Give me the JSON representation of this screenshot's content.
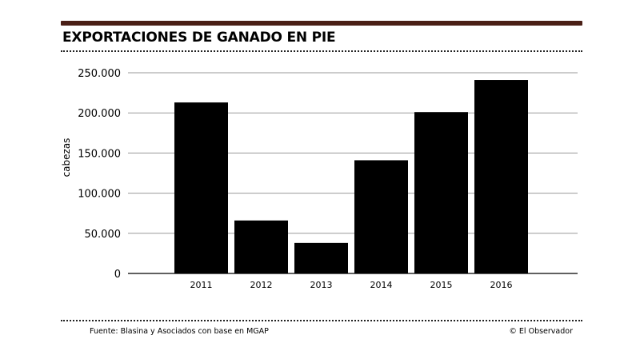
{
  "header": {
    "title": "EXPORTACIONES DE GANADO EN PIE"
  },
  "footer": {
    "source": "Fuente: Blasina y Asociados con base en MGAP",
    "credit": "© El Observador"
  },
  "colors": {
    "top_rule": "#4a1f16",
    "bar": "#000000",
    "grid": "#9a9a9a"
  },
  "chart_data": {
    "type": "bar",
    "title": "EXPORTACIONES DE GANADO EN PIE",
    "xlabel": "",
    "ylabel": "cabezas",
    "categories": [
      "2011",
      "2012",
      "2013",
      "2014",
      "2015",
      "2016"
    ],
    "values": [
      213000,
      66000,
      38000,
      141000,
      201000,
      241000
    ],
    "ylim": [
      0,
      250000
    ],
    "yticks": [
      0,
      50000,
      100000,
      150000,
      200000,
      250000
    ],
    "ytick_labels": [
      "0",
      "50.000",
      "100.000",
      "150.000",
      "200.000",
      "250.000"
    ],
    "grid": true,
    "legend": "none"
  }
}
